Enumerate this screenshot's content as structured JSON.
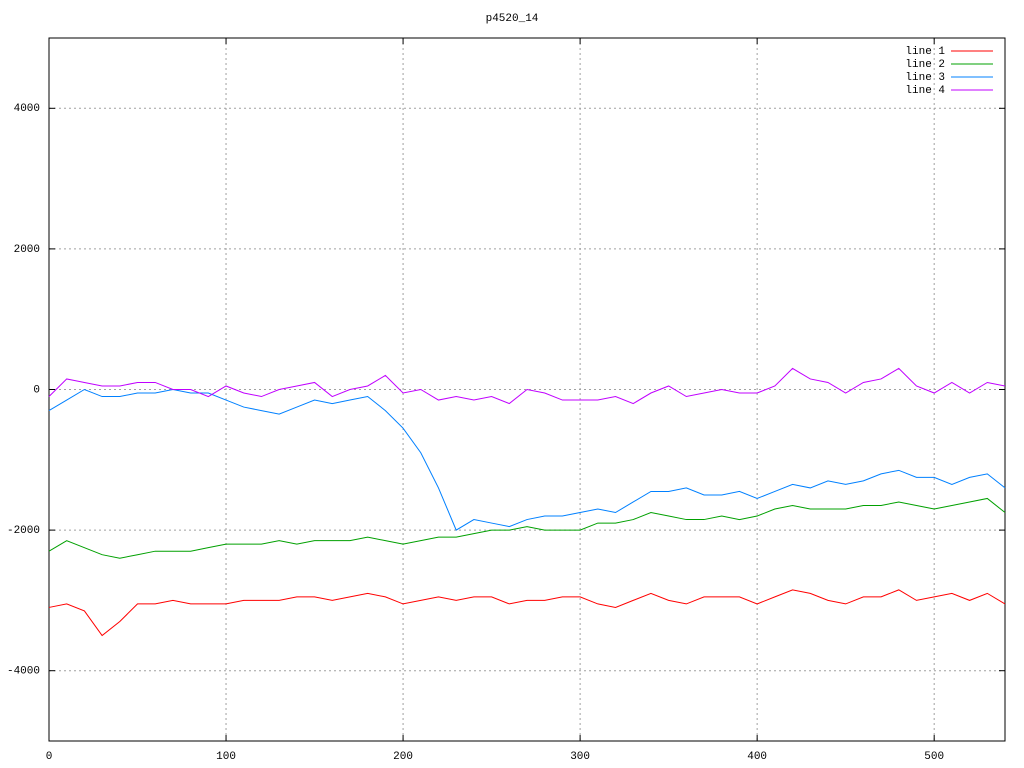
{
  "chart_data": {
    "type": "line",
    "title": "p4520_14",
    "x": [
      0,
      10,
      20,
      30,
      40,
      50,
      60,
      70,
      80,
      90,
      100,
      110,
      120,
      130,
      140,
      150,
      160,
      170,
      180,
      190,
      200,
      210,
      220,
      230,
      240,
      250,
      260,
      270,
      280,
      290,
      300,
      310,
      320,
      330,
      340,
      350,
      360,
      370,
      380,
      390,
      400,
      410,
      420,
      430,
      440,
      450,
      460,
      470,
      480,
      490,
      500,
      510,
      520,
      530,
      540
    ],
    "series": [
      {
        "name": "line 1",
        "color": "#ff0000",
        "values": [
          -3100,
          -3050,
          -3150,
          -3500,
          -3300,
          -3050,
          -3050,
          -3000,
          -3050,
          -3050,
          -3050,
          -3000,
          -3000,
          -3000,
          -2950,
          -2950,
          -3000,
          -2950,
          -2900,
          -2950,
          -3050,
          -3000,
          -2950,
          -3000,
          -2950,
          -2950,
          -3050,
          -3000,
          -3000,
          -2950,
          -2950,
          -3050,
          -3100,
          -3000,
          -2900,
          -3000,
          -3050,
          -2950,
          -2950,
          -2950,
          -3050,
          -2950,
          -2850,
          -2900,
          -3000,
          -3050,
          -2950,
          -2950,
          -2850,
          -3000,
          -2950,
          -2900,
          -3000,
          -2900,
          -3050
        ]
      },
      {
        "name": "line 2",
        "color": "#00a000",
        "values": [
          -2300,
          -2150,
          -2250,
          -2350,
          -2400,
          -2350,
          -2300,
          -2300,
          -2300,
          -2250,
          -2200,
          -2200,
          -2200,
          -2150,
          -2200,
          -2150,
          -2150,
          -2150,
          -2100,
          -2150,
          -2200,
          -2150,
          -2100,
          -2100,
          -2050,
          -2000,
          -2000,
          -1950,
          -2000,
          -2000,
          -2000,
          -1900,
          -1900,
          -1850,
          -1750,
          -1800,
          -1850,
          -1850,
          -1800,
          -1850,
          -1800,
          -1700,
          -1650,
          -1700,
          -1700,
          -1700,
          -1650,
          -1650,
          -1600,
          -1650,
          -1700,
          -1650,
          -1600,
          -1550,
          -1750
        ]
      },
      {
        "name": "line 3",
        "color": "#0080ff",
        "values": [
          -300,
          -150,
          0,
          -100,
          -100,
          -50,
          -50,
          0,
          -50,
          -50,
          -150,
          -250,
          -300,
          -350,
          -250,
          -150,
          -200,
          -150,
          -100,
          -300,
          -550,
          -900,
          -1400,
          -2000,
          -1850,
          -1900,
          -1950,
          -1850,
          -1800,
          -1800,
          -1750,
          -1700,
          -1750,
          -1600,
          -1450,
          -1450,
          -1400,
          -1500,
          -1500,
          -1450,
          -1550,
          -1450,
          -1350,
          -1400,
          -1300,
          -1350,
          -1300,
          -1200,
          -1150,
          -1250,
          -1250,
          -1350,
          -1250,
          -1200,
          -1400
        ]
      },
      {
        "name": "line 4",
        "color": "#c000ff",
        "values": [
          -100,
          150,
          100,
          50,
          50,
          100,
          100,
          0,
          0,
          -100,
          50,
          -50,
          -100,
          0,
          50,
          100,
          -100,
          0,
          50,
          200,
          -50,
          0,
          -150,
          -100,
          -150,
          -100,
          -200,
          0,
          -50,
          -150,
          -150,
          -150,
          -100,
          -200,
          -50,
          50,
          -100,
          -50,
          0,
          -50,
          -50,
          50,
          300,
          150,
          100,
          -50,
          100,
          150,
          300,
          50,
          -50,
          100,
          -50,
          100,
          50
        ]
      }
    ],
    "xlim": [
      0,
      540
    ],
    "ylim": [
      -5000,
      5000
    ],
    "xticks": [
      0,
      100,
      200,
      300,
      400,
      500
    ],
    "yticks": [
      -4000,
      -2000,
      0,
      2000,
      4000
    ],
    "grid": true,
    "legend": "top-right"
  }
}
